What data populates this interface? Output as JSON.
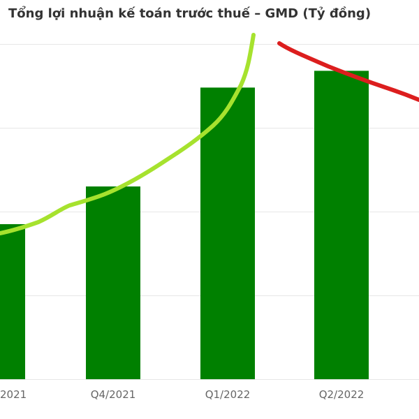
{
  "chart_data": {
    "type": "bar",
    "title": "Tổng lợi nhuận kế toán trước thuế – GMD (Tỷ đồng)",
    "categories": [
      "2021",
      "Q4/2021",
      "Q1/2022",
      "Q2/2022"
    ],
    "values": [
      185,
      230,
      348,
      368
    ],
    "ylim": [
      0,
      400
    ],
    "grid": true,
    "colors": {
      "bar": "#008000",
      "grid": "#e6e6e6",
      "trend_up": "#a6e22e",
      "trend_down": "#dc1e1e"
    },
    "annotations": [
      {
        "type": "hand-drawn-line",
        "color": "lime-green",
        "meaning": "rising trend"
      },
      {
        "type": "hand-drawn-line",
        "color": "red",
        "meaning": "falling trend"
      }
    ]
  }
}
